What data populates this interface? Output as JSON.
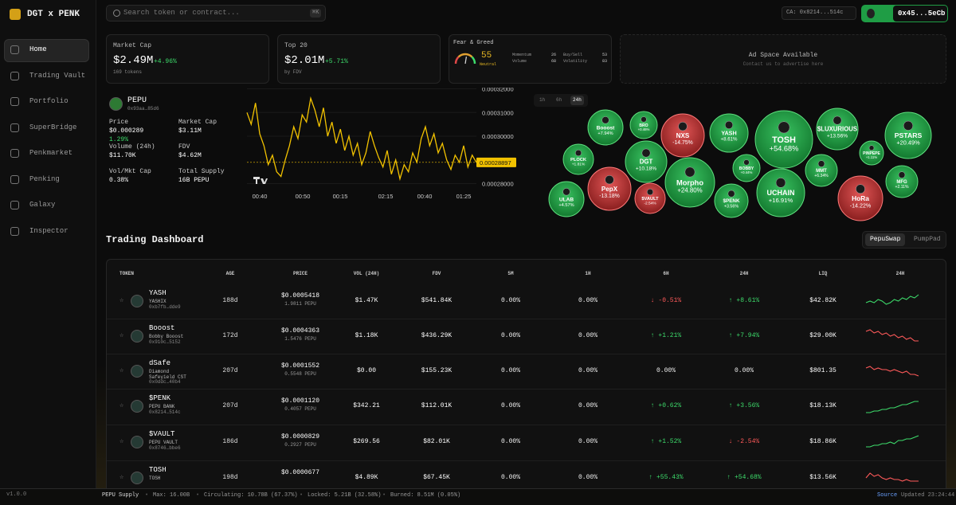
{
  "sidebar": {
    "brand": "DGT x PENK",
    "nav": [
      "Home",
      "Trading Vault",
      "Portfolio",
      "SuperBridge",
      "Penkmarket",
      "Penking",
      "Galaxy",
      "Inspector"
    ],
    "version": "v1.0.0"
  },
  "topbar": {
    "search_placeholder": "Search token or contract...",
    "shortcut": "⌘K",
    "contract": "CA: 0x8214...514c",
    "wallet": "0x45...5eCb"
  },
  "stats": [
    {
      "title": "Market Cap",
      "value": "$2.49M",
      "change": "+4.96%",
      "sub": "169 tokens"
    },
    {
      "title": "Top 20",
      "value": "$2.01M",
      "change": "+5.71%",
      "sub": "by FDV"
    }
  ],
  "fear_greed": {
    "title": "Fear & Greed",
    "value": 55,
    "range": [
      0,
      100
    ],
    "label": "Neutral",
    "metrics": [
      {
        "name": "Momentum",
        "value": 26
      },
      {
        "name": "Buy/Sell",
        "value": 53
      },
      {
        "name": "Volume",
        "value": 68
      },
      {
        "name": "Volatility",
        "value": 83
      }
    ]
  },
  "ad": {
    "title": "Ad Space Available",
    "sub": "Contact us to advertise here"
  },
  "token": {
    "name": "PEPU",
    "address": "0x93aa…85d6",
    "fields": [
      {
        "label": "Price",
        "value": "$0.000289",
        "change": "1.29%"
      },
      {
        "label": "Market Cap",
        "value": "$3.11M"
      },
      {
        "label": "Volume (24h)",
        "value": "$11.70K"
      },
      {
        "label": "FDV",
        "value": "$4.62M"
      },
      {
        "label": "Vol/Mkt Cap",
        "value": "0.38%"
      },
      {
        "label": "Total Supply",
        "value": "16B PEPU"
      }
    ]
  },
  "chart_data": {
    "type": "line",
    "color": "#f2c200",
    "values": [
      0.00031,
      0.000305,
      0.000314,
      0.000301,
      0.000296,
      0.000288,
      0.000292,
      0.000285,
      0.000283,
      0.00029,
      0.000296,
      0.000304,
      0.000299,
      0.000309,
      0.000306,
      0.000316,
      0.000311,
      0.000304,
      0.000312,
      0.0003,
      0.000306,
      0.000297,
      0.000303,
      0.000294,
      0.0003,
      0.000292,
      0.000297,
      0.000288,
      0.000293,
      0.000302,
      0.000296,
      0.000291,
      0.000287,
      0.000294,
      0.000284,
      0.00029,
      0.000282,
      0.000288,
      0.000285,
      0.000293,
      0.000289,
      0.000299,
      0.000304,
      0.000296,
      0.000301,
      0.000293,
      0.000297,
      0.00029,
      0.000286,
      0.000292,
      0.000289,
      0.000296,
      0.000287,
      0.000292,
      0.00028897
    ],
    "ylim": [
      0.0002775,
      0.0003205
    ],
    "yticks": [
      {
        "value": 0.00032,
        "label": "0.00032000"
      },
      {
        "value": 0.00031,
        "label": "0.00031000"
      },
      {
        "value": 0.0003,
        "label": "0.00030000"
      },
      {
        "value": 0.00028,
        "label": "0.00028000"
      }
    ],
    "current": 0.00028897,
    "x_labels": [
      "00:40",
      "00:50",
      "00:15",
      "02:15",
      "00:40",
      "01:25"
    ]
  },
  "timeframes": [
    "1h",
    "6h",
    "24h"
  ],
  "active_timeframe": "24h",
  "bubbles": [
    {
      "name": "Booost",
      "change": 7.94,
      "label": "+7.94%"
    },
    {
      "name": "BRO",
      "change": 0.46,
      "label": "+0.46%"
    },
    {
      "name": "NXS",
      "change": -14.75,
      "label": "-14.75%"
    },
    {
      "name": "YASH",
      "change": 8.61,
      "label": "+8.61%"
    },
    {
      "name": "TOSH",
      "change": 54.68,
      "label": "+54.68%"
    },
    {
      "name": "$LUXURIOUS",
      "change": 13.56,
      "label": "+13.56%"
    },
    {
      "name": "PSTARS",
      "change": 20.49,
      "label": "+20.49%"
    },
    {
      "name": "PLOCK",
      "change": 1.81,
      "label": "+1.81%"
    },
    {
      "name": "DGT",
      "change": 10.18,
      "label": "+10.18%"
    },
    {
      "name": "PINPEPE",
      "change": 1.11,
      "label": "+1.11%"
    },
    {
      "name": "BOBBY",
      "change": 0.44,
      "label": "+0.44%"
    },
    {
      "name": "MMT",
      "change": 6.34,
      "label": "+6.34%"
    },
    {
      "name": "MFG",
      "change": 2.11,
      "label": "+2.11%"
    },
    {
      "name": "Morpho",
      "change": 24.8,
      "label": "+24.80%"
    },
    {
      "name": "ULAB",
      "change": 4.57,
      "label": "+4.57%"
    },
    {
      "name": "PepX",
      "change": -13.18,
      "label": "-13.18%"
    },
    {
      "name": "$VAULT",
      "change": -2.54,
      "label": "-2.54%"
    },
    {
      "name": "$PENK",
      "change": 3.56,
      "label": "+3.56%"
    },
    {
      "name": "UCHAIN",
      "change": 16.91,
      "label": "+16.91%"
    },
    {
      "name": "HoRa",
      "change": -14.22,
      "label": "-14.22%"
    }
  ],
  "dashboard": {
    "title": "Trading Dashboard",
    "tabs": [
      "PepuSwap",
      "PumpPad"
    ],
    "columns": [
      "TOKEN",
      "AGE",
      "PRICE",
      "VOL (24H)",
      "FDV",
      "5M",
      "1H",
      "6H",
      "24H",
      "LIQ",
      "24H"
    ],
    "spark_range": [
      0,
      10
    ],
    "rows": [
      {
        "symbol": "YASH",
        "name": "YASHIX",
        "address": "0xb7fb…dde9",
        "age": "188d",
        "price": "$0.0005418",
        "price_pepu": "1.9811 PEPU",
        "vol": "$1.47K",
        "fdv": "$541.84K",
        "m5": "0.00%",
        "h1": "0.00%",
        "h6": "-0.51%",
        "h24": "+8.61%",
        "liq": "$42.82K",
        "spark": [
          4,
          5,
          4,
          6,
          5,
          3,
          4,
          6,
          5,
          7,
          6,
          8,
          7,
          9
        ]
      },
      {
        "symbol": "Booost",
        "name": "Bobby Booost",
        "address": "0x910c…5152",
        "age": "172d",
        "price": "$0.0004363",
        "price_pepu": "1.5476 PEPU",
        "vol": "$1.18K",
        "fdv": "$436.29K",
        "m5": "0.00%",
        "h1": "0.00%",
        "h6": "+1.21%",
        "h24": "+7.94%",
        "liq": "$29.00K",
        "spark": [
          8,
          9,
          7,
          8,
          6,
          7,
          5,
          6,
          4,
          5,
          3,
          4,
          2,
          2
        ]
      },
      {
        "symbol": "dSafe",
        "name": "Diamond Safeyield CST",
        "address": "0x0ddc…40b4",
        "age": "207d",
        "price": "$0.0001552",
        "price_pepu": "0.5548 PEPU",
        "vol": "$0.00",
        "fdv": "$155.23K",
        "m5": "0.00%",
        "h1": "0.00%",
        "h6": "0.00%",
        "h24": "0.00%",
        "liq": "$801.35",
        "spark": [
          7,
          8,
          6,
          7,
          6,
          6,
          5,
          6,
          5,
          4,
          5,
          3,
          3,
          2
        ]
      },
      {
        "symbol": "$PENK",
        "name": "PEPU BANK",
        "address": "0x8214…514c",
        "age": "207d",
        "price": "$0.0001120",
        "price_pepu": "0.4057 PEPU",
        "vol": "$342.21",
        "fdv": "$112.01K",
        "m5": "0.00%",
        "h1": "0.00%",
        "h6": "+0.62%",
        "h24": "+3.56%",
        "liq": "$18.13K",
        "spark": [
          1,
          1,
          2,
          2,
          3,
          3,
          4,
          4,
          5,
          6,
          6,
          7,
          8,
          8
        ]
      },
      {
        "symbol": "$VAULT",
        "name": "PEPU VAULT",
        "address": "0x8746…bbe6",
        "age": "186d",
        "price": "$0.0000829",
        "price_pepu": "0.2927 PEPU",
        "vol": "$269.56",
        "fdv": "$82.01K",
        "m5": "0.00%",
        "h1": "0.00%",
        "h6": "+1.52%",
        "h24": "-2.54%",
        "liq": "$18.86K",
        "spark": [
          2,
          2,
          3,
          3,
          4,
          4,
          5,
          4,
          6,
          6,
          7,
          7,
          8,
          9
        ]
      },
      {
        "symbol": "TOSH",
        "name": "TOSH",
        "age": "198d",
        "price": "$0.0000677",
        "vol": "$4.89K",
        "fdv": "$67.45K",
        "m5": "0.00%",
        "h1": "0.00%",
        "h6": "+55.43%",
        "h24": "+54.68%",
        "liq": "$13.56K",
        "spark": [
          5,
          8,
          6,
          7,
          5,
          4,
          5,
          4,
          4,
          3,
          4,
          3,
          3,
          3
        ]
      }
    ]
  },
  "footer": {
    "items": [
      "PEPU Supply",
      "Max: 16.00B",
      "Circulating: 10.78B (67.37%)",
      "Locked: 5.21B (32.58%)",
      "Burned: 8.51M (0.05%)"
    ],
    "source": "Source",
    "updated": "Updated 23:24:44"
  }
}
